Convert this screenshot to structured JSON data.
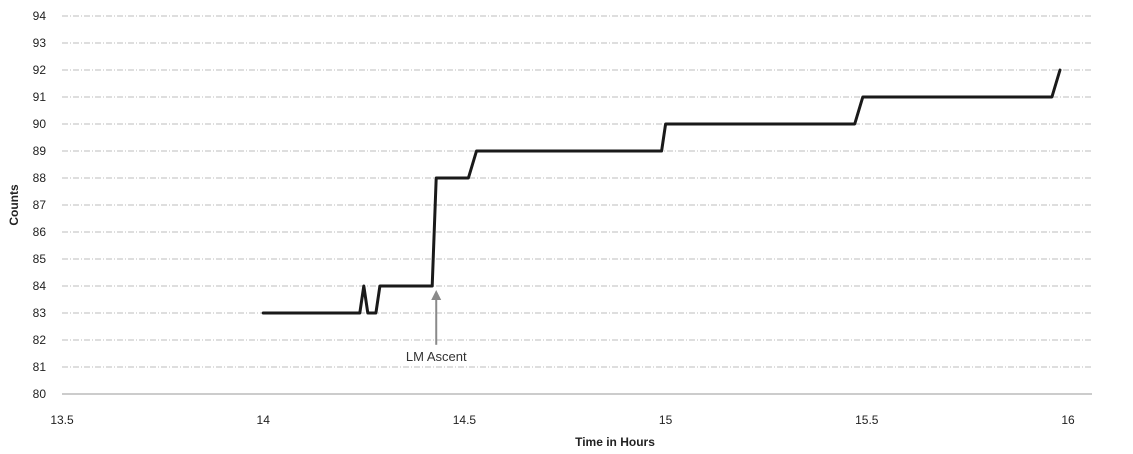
{
  "chart_data": {
    "type": "line",
    "title": "",
    "xlabel": "Time in Hours",
    "ylabel": "Counts",
    "xlim": [
      13.5,
      16.1
    ],
    "ylim": [
      80,
      94
    ],
    "x_ticks": [
      13.5,
      14,
      14.5,
      15,
      15.5,
      16
    ],
    "x_tick_labels": [
      "13.5",
      "14",
      "14.5",
      "15",
      "15.5",
      "16"
    ],
    "y_ticks": [
      80,
      81,
      82,
      83,
      84,
      85,
      86,
      87,
      88,
      89,
      90,
      91,
      92,
      93,
      94
    ],
    "y_tick_labels": [
      "80",
      "81",
      "82",
      "83",
      "84",
      "85",
      "86",
      "87",
      "88",
      "89",
      "90",
      "91",
      "92",
      "93",
      "94"
    ],
    "grid": true,
    "series": [
      {
        "color": "#1a1a1a",
        "x": [
          14.0,
          14.24,
          14.25,
          14.26,
          14.27,
          14.28,
          14.29,
          14.42,
          14.43,
          14.51,
          14.53,
          14.99,
          15.0,
          15.47,
          15.49,
          15.96,
          15.98
        ],
        "y": [
          83,
          83,
          84,
          83,
          83,
          83,
          84,
          84,
          88,
          88,
          89,
          89,
          90,
          90,
          91,
          91,
          92
        ]
      }
    ],
    "annotations": [
      {
        "text": "LM Ascent",
        "x": 14.43,
        "y": 81.6,
        "arrow_to": [
          14.43,
          84
        ]
      }
    ]
  }
}
